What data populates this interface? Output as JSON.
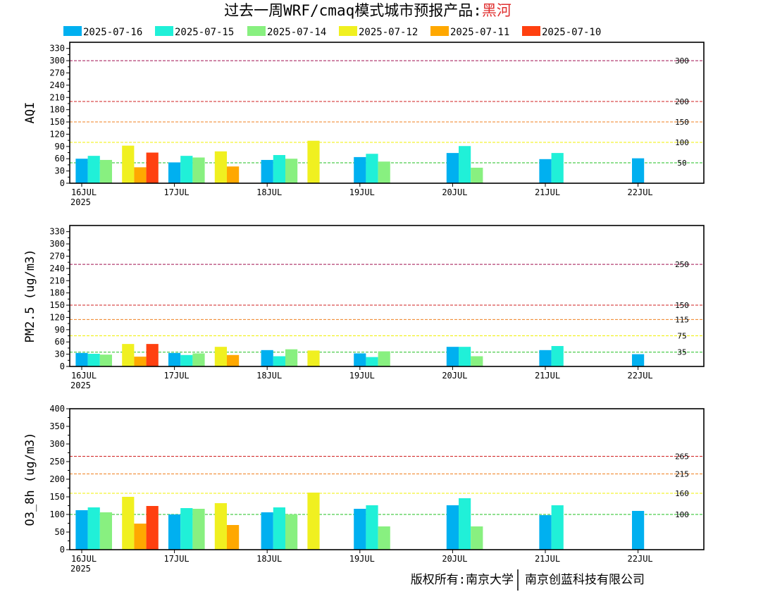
{
  "header": {
    "title_prefix": "过去一周WRF/cmaq模式城市预报产品:",
    "city": "黑河",
    "city_color": "#e03030"
  },
  "legend": [
    {
      "label": "2025-07-16",
      "color": "#00b0f0"
    },
    {
      "label": "2025-07-15",
      "color": "#20f0d8"
    },
    {
      "label": "2025-07-14",
      "color": "#88f080"
    },
    {
      "label": "2025-07-12",
      "color": "#f0f020"
    },
    {
      "label": "2025-07-11",
      "color": "#ffa800"
    },
    {
      "label": "2025-07-10",
      "color": "#ff4010"
    }
  ],
  "footer": {
    "copyright_left": "版权所有:南京大学",
    "copyright_right": "南京创蓝科技有限公司"
  },
  "chart_data": [
    {
      "type": "bar",
      "ylabel": "AQI",
      "ylim": [
        0,
        345
      ],
      "yticks": [
        0,
        30,
        60,
        90,
        120,
        150,
        180,
        210,
        240,
        270,
        300,
        330
      ],
      "xlabels": [
        "16JUL",
        "17JUL",
        "18JUL",
        "19JUL",
        "20JUL",
        "21JUL",
        "22JUL"
      ],
      "year_label": "2025",
      "thresholds": [
        {
          "value": 300,
          "label": "300",
          "color": "#a01050"
        },
        {
          "value": 200,
          "label": "200",
          "color": "#d02020"
        },
        {
          "value": 150,
          "label": "150",
          "color": "#f08020"
        },
        {
          "value": 100,
          "label": "100",
          "color": "#f0f000"
        },
        {
          "value": 50,
          "label": "50",
          "color": "#20c020"
        }
      ],
      "groups": [
        {
          "day": 0.0,
          "bars": [
            {
              "series": "2025-07-16",
              "value": 60
            },
            {
              "series": "2025-07-15",
              "value": 67
            },
            {
              "series": "2025-07-14",
              "value": 57
            }
          ]
        },
        {
          "day": 0.5,
          "bars": [
            {
              "series": "2025-07-12",
              "value": 92
            },
            {
              "series": "2025-07-11",
              "value": 39
            },
            {
              "series": "2025-07-10",
              "value": 75
            }
          ]
        },
        {
          "day": 1.0,
          "bars": [
            {
              "series": "2025-07-16",
              "value": 51
            },
            {
              "series": "2025-07-15",
              "value": 67
            },
            {
              "series": "2025-07-14",
              "value": 63
            }
          ]
        },
        {
          "day": 1.5,
          "bars": [
            {
              "series": "2025-07-12",
              "value": 78
            },
            {
              "series": "2025-07-11",
              "value": 41
            }
          ]
        },
        {
          "day": 2.0,
          "bars": [
            {
              "series": "2025-07-16",
              "value": 57
            },
            {
              "series": "2025-07-15",
              "value": 69
            },
            {
              "series": "2025-07-14",
              "value": 60
            }
          ]
        },
        {
          "day": 2.5,
          "bars": [
            {
              "series": "2025-07-12",
              "value": 104
            }
          ]
        },
        {
          "day": 3.0,
          "bars": [
            {
              "series": "2025-07-16",
              "value": 64
            },
            {
              "series": "2025-07-15",
              "value": 72
            },
            {
              "series": "2025-07-14",
              "value": 53
            }
          ]
        },
        {
          "day": 4.0,
          "bars": [
            {
              "series": "2025-07-16",
              "value": 74
            },
            {
              "series": "2025-07-15",
              "value": 91
            },
            {
              "series": "2025-07-14",
              "value": 38
            }
          ]
        },
        {
          "day": 5.0,
          "bars": [
            {
              "series": "2025-07-16",
              "value": 59
            },
            {
              "series": "2025-07-15",
              "value": 74
            }
          ]
        },
        {
          "day": 6.0,
          "bars": [
            {
              "series": "2025-07-16",
              "value": 61
            }
          ]
        }
      ]
    },
    {
      "type": "bar",
      "ylabel": "PM2.5 (ug/m3)",
      "ylim": [
        0,
        345
      ],
      "yticks": [
        0,
        30,
        60,
        90,
        120,
        150,
        180,
        210,
        240,
        270,
        300,
        330
      ],
      "xlabels": [
        "16JUL",
        "17JUL",
        "18JUL",
        "19JUL",
        "20JUL",
        "21JUL",
        "22JUL"
      ],
      "year_label": "2025",
      "thresholds": [
        {
          "value": 250,
          "label": "250",
          "color": "#a01050"
        },
        {
          "value": 150,
          "label": "150",
          "color": "#d02020"
        },
        {
          "value": 115,
          "label": "115",
          "color": "#f08020"
        },
        {
          "value": 75,
          "label": "75",
          "color": "#f0f000"
        },
        {
          "value": 35,
          "label": "35",
          "color": "#20c020"
        }
      ],
      "groups": [
        {
          "day": 0.0,
          "bars": [
            {
              "series": "2025-07-16",
              "value": 33
            },
            {
              "series": "2025-07-15",
              "value": 31
            },
            {
              "series": "2025-07-14",
              "value": 29
            }
          ]
        },
        {
          "day": 0.5,
          "bars": [
            {
              "series": "2025-07-12",
              "value": 55
            },
            {
              "series": "2025-07-11",
              "value": 24
            },
            {
              "series": "2025-07-10",
              "value": 55
            }
          ]
        },
        {
          "day": 1.0,
          "bars": [
            {
              "series": "2025-07-16",
              "value": 33
            },
            {
              "series": "2025-07-15",
              "value": 28
            },
            {
              "series": "2025-07-14",
              "value": 32
            }
          ]
        },
        {
          "day": 1.5,
          "bars": [
            {
              "series": "2025-07-12",
              "value": 48
            },
            {
              "series": "2025-07-11",
              "value": 28
            }
          ]
        },
        {
          "day": 2.0,
          "bars": [
            {
              "series": "2025-07-16",
              "value": 40
            },
            {
              "series": "2025-07-15",
              "value": 25
            },
            {
              "series": "2025-07-14",
              "value": 42
            }
          ]
        },
        {
          "day": 2.5,
          "bars": [
            {
              "series": "2025-07-12",
              "value": 39
            }
          ]
        },
        {
          "day": 3.0,
          "bars": [
            {
              "series": "2025-07-16",
              "value": 32
            },
            {
              "series": "2025-07-15",
              "value": 23
            },
            {
              "series": "2025-07-14",
              "value": 37
            }
          ]
        },
        {
          "day": 4.0,
          "bars": [
            {
              "series": "2025-07-16",
              "value": 48
            },
            {
              "series": "2025-07-15",
              "value": 48
            },
            {
              "series": "2025-07-14",
              "value": 25
            }
          ]
        },
        {
          "day": 5.0,
          "bars": [
            {
              "series": "2025-07-16",
              "value": 40
            },
            {
              "series": "2025-07-15",
              "value": 50
            }
          ]
        },
        {
          "day": 6.0,
          "bars": [
            {
              "series": "2025-07-16",
              "value": 30
            }
          ]
        }
      ]
    },
    {
      "type": "bar",
      "ylabel": "O3_8h (ug/m3)",
      "ylim": [
        0,
        400
      ],
      "yticks": [
        0,
        50,
        100,
        150,
        200,
        250,
        300,
        350,
        400
      ],
      "xlabels": [
        "16JUL",
        "17JUL",
        "18JUL",
        "19JUL",
        "20JUL",
        "21JUL",
        "22JUL"
      ],
      "year_label": "2025",
      "thresholds": [
        {
          "value": 265,
          "label": "265",
          "color": "#d02020"
        },
        {
          "value": 215,
          "label": "215",
          "color": "#f08020"
        },
        {
          "value": 160,
          "label": "160",
          "color": "#f0f000"
        },
        {
          "value": 100,
          "label": "100",
          "color": "#20c020"
        }
      ],
      "groups": [
        {
          "day": 0.0,
          "bars": [
            {
              "series": "2025-07-16",
              "value": 112
            },
            {
              "series": "2025-07-15",
              "value": 120
            },
            {
              "series": "2025-07-14",
              "value": 106
            }
          ]
        },
        {
          "day": 0.5,
          "bars": [
            {
              "series": "2025-07-12",
              "value": 150
            },
            {
              "series": "2025-07-11",
              "value": 74
            },
            {
              "series": "2025-07-10",
              "value": 124
            }
          ]
        },
        {
          "day": 1.0,
          "bars": [
            {
              "series": "2025-07-16",
              "value": 100
            },
            {
              "series": "2025-07-15",
              "value": 118
            },
            {
              "series": "2025-07-14",
              "value": 116
            }
          ]
        },
        {
          "day": 1.5,
          "bars": [
            {
              "series": "2025-07-12",
              "value": 132
            },
            {
              "series": "2025-07-11",
              "value": 70
            }
          ]
        },
        {
          "day": 2.0,
          "bars": [
            {
              "series": "2025-07-16",
              "value": 106
            },
            {
              "series": "2025-07-15",
              "value": 120
            },
            {
              "series": "2025-07-14",
              "value": 100
            }
          ]
        },
        {
          "day": 2.5,
          "bars": [
            {
              "series": "2025-07-12",
              "value": 162
            }
          ]
        },
        {
          "day": 3.0,
          "bars": [
            {
              "series": "2025-07-16",
              "value": 116
            },
            {
              "series": "2025-07-15",
              "value": 126
            },
            {
              "series": "2025-07-14",
              "value": 66
            }
          ]
        },
        {
          "day": 4.0,
          "bars": [
            {
              "series": "2025-07-16",
              "value": 126
            },
            {
              "series": "2025-07-15",
              "value": 146
            },
            {
              "series": "2025-07-14",
              "value": 66
            }
          ]
        },
        {
          "day": 5.0,
          "bars": [
            {
              "series": "2025-07-16",
              "value": 98
            },
            {
              "series": "2025-07-15",
              "value": 126
            }
          ]
        },
        {
          "day": 6.0,
          "bars": [
            {
              "series": "2025-07-16",
              "value": 110
            }
          ]
        }
      ]
    }
  ]
}
